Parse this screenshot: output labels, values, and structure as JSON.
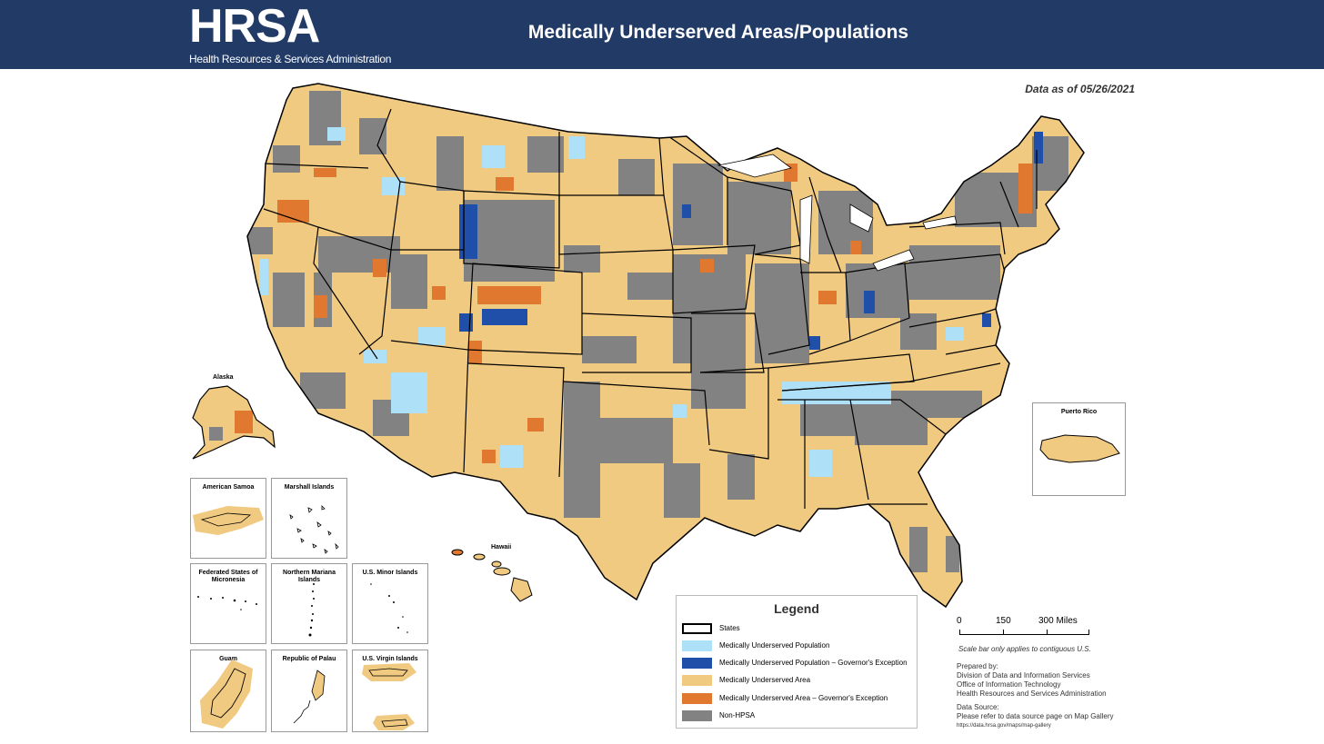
{
  "header": {
    "logo_text": "HRSA",
    "logo_subtitle": "Health Resources & Services Administration",
    "title": "Medically Underserved Areas/Populations"
  },
  "data_as_of": "Data as of 05/26/2021",
  "colors": {
    "header_bg": "#213a66",
    "mup": "#aee0f8",
    "mup_gov": "#1f4fa8",
    "mua": "#f1ca82",
    "mua_gov": "#e0782f",
    "non_hpsa": "#828282"
  },
  "labels": {
    "alaska": "Alaska",
    "hawaii": "Hawaii"
  },
  "insets": {
    "puerto_rico": "Puerto Rico",
    "american_samoa": "American Samoa",
    "marshall_islands": "Marshall Islands",
    "micronesia_line1": "Federated States of",
    "micronesia_line2": "Micronesia",
    "northern_mariana": "Northern Mariana Islands",
    "us_minor": "U.S. Minor Islands",
    "guam": "Guam",
    "palau": "Republic of Palau",
    "virgin_islands": "U.S. Virgin Islands"
  },
  "legend": {
    "title": "Legend",
    "items": [
      {
        "label": "States",
        "swatch": "outline"
      },
      {
        "label": "Medically Underserved Population",
        "swatch": "#aee0f8"
      },
      {
        "label": "Medically Underserved Population – Governor's Exception",
        "swatch": "#1f4fa8"
      },
      {
        "label": "Medically Underserved Area",
        "swatch": "#f1ca82"
      },
      {
        "label": "Medically Underserved Area – Governor's Exception",
        "swatch": "#e0782f"
      },
      {
        "label": "Non-HPSA",
        "swatch": "#828282"
      }
    ]
  },
  "scale": {
    "t0": "0",
    "t1": "150",
    "t2": "300 Miles",
    "note": "Scale bar only applies to contiguous U.S."
  },
  "credits": {
    "prepared_by": "Prepared by:",
    "line1": "Division of Data and Information Services",
    "line2": "Office of Information Technology",
    "line3": "Health Resources and Services Administration",
    "source_label": "Data Source:",
    "source_text": "Please refer to data source page on Map Gallery",
    "url": "https://data.hrsa.gov/maps/map-gallery"
  }
}
